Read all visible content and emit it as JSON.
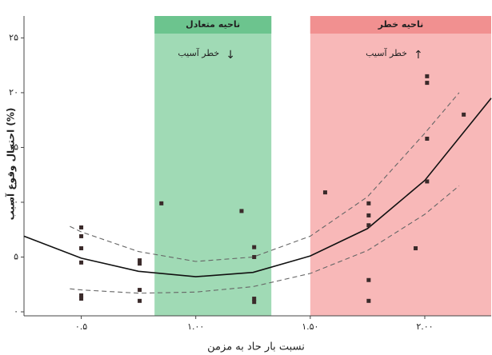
{
  "chart_data": {
    "type": "scatter",
    "xlabel": "نسبت بار حاد به مزمن",
    "ylabel": "احتمال وقوع آسیب (%)",
    "xlim": [
      0.25,
      2.29
    ],
    "ylim": [
      0,
      27
    ],
    "xticks": [
      {
        "value": 0.5,
        "label": "۰.۵"
      },
      {
        "value": 1.0,
        "label": "۱.۰۰"
      },
      {
        "value": 1.5,
        "label": "۱.۵۰"
      },
      {
        "value": 2.0,
        "label": "۲.۰۰"
      }
    ],
    "yticks": [
      {
        "value": 0,
        "label": "۰"
      },
      {
        "value": 5,
        "label": "۵"
      },
      {
        "value": 10,
        "label": "۱۰"
      },
      {
        "value": 15,
        "label": "۱۵"
      },
      {
        "value": 20,
        "label": "۲۰"
      },
      {
        "value": 25,
        "label": "۲۵"
      }
    ],
    "zones": [
      {
        "label": "ناحیه متعادل",
        "sublabel": "خطر آسیب",
        "arrow": "↓",
        "xrange": [
          0.82,
          1.33
        ],
        "color": "#8fd4a8",
        "header_color": "#6cc48e"
      },
      {
        "label": "ناحیه خطر",
        "sublabel": "خطر آسیب",
        "arrow": "↑",
        "xrange": [
          1.5,
          2.29
        ],
        "color": "#f7abab",
        "header_color": "#f19090"
      }
    ],
    "points": {
      "color": "#3a2a2a",
      "x": [
        0.5,
        0.5,
        0.5,
        0.5,
        0.5,
        0.5,
        0.755,
        0.755,
        0.755,
        0.755,
        0.85,
        1.2,
        1.255,
        1.255,
        1.255,
        1.255,
        1.565,
        1.755,
        1.755,
        1.755,
        1.755,
        1.755,
        1.96,
        2.01,
        2.01,
        2.01,
        2.01,
        2.17
      ],
      "values": [
        7.7,
        6.9,
        5.8,
        4.5,
        1.5,
        1.2,
        4.7,
        4.4,
        2.0,
        1.0,
        9.9,
        9.2,
        5.9,
        5.0,
        1.2,
        0.9,
        10.9,
        9.9,
        8.8,
        7.9,
        2.9,
        1.0,
        5.8,
        21.5,
        20.9,
        15.8,
        11.9,
        18.0
      ]
    },
    "lines": [
      {
        "style": "solid",
        "color": "#111",
        "x": [
          0.25,
          0.5,
          0.75,
          1.0,
          1.25,
          1.5,
          1.75,
          2.0,
          2.29
        ],
        "values": [
          6.9,
          4.9,
          3.7,
          3.2,
          3.6,
          5.1,
          7.6,
          12.0,
          19.5
        ]
      },
      {
        "style": "dashed",
        "color": "#666",
        "x": [
          0.45,
          0.5,
          0.75,
          1.0,
          1.25,
          1.5,
          1.75,
          2.0,
          2.15
        ],
        "values": [
          7.8,
          7.3,
          5.5,
          4.6,
          5.0,
          6.9,
          10.5,
          16.3,
          20.0
        ]
      },
      {
        "style": "dashed",
        "color": "#666",
        "x": [
          0.45,
          0.5,
          0.75,
          1.0,
          1.25,
          1.5,
          1.75,
          2.0,
          2.15
        ],
        "values": [
          2.1,
          2.0,
          1.7,
          1.8,
          2.3,
          3.5,
          5.6,
          8.9,
          11.5
        ]
      }
    ]
  }
}
